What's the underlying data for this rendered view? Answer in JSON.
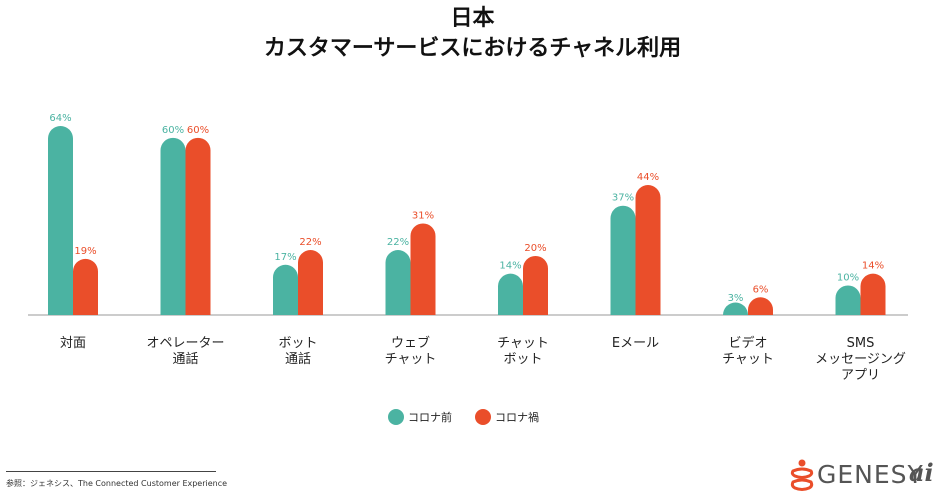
{
  "chart_data": {
    "type": "bar",
    "title": "日本",
    "subtitle": "カスタマーサービスにおけるチャネル利用",
    "categories": [
      [
        "対面"
      ],
      [
        "オペレーター",
        "通話"
      ],
      [
        "ボット",
        "通話"
      ],
      [
        "ウェブ",
        "チャット"
      ],
      [
        "チャット",
        "ボット"
      ],
      [
        "Eメール"
      ],
      [
        "ビデオ",
        "チャット"
      ],
      [
        "SMS",
        "メッセージング",
        "アプリ"
      ]
    ],
    "series": [
      {
        "name": "コロナ前",
        "color": "#4BB3A2",
        "values": [
          64,
          60,
          17,
          22,
          14,
          37,
          3,
          10
        ],
        "labels": [
          "64%",
          "60%",
          "17%",
          "22%",
          "14%",
          "37%",
          "3%",
          "10%"
        ]
      },
      {
        "name": "コロナ禍",
        "color": "#EA4E2A",
        "values": [
          19,
          60,
          22,
          31,
          20,
          44,
          6,
          14
        ],
        "labels": [
          "19%",
          "60%",
          "22%",
          "31%",
          "20%",
          "44%",
          "6%",
          "14%"
        ]
      }
    ],
    "ylim": [
      0,
      64
    ],
    "grid": false,
    "legend_position": "bottom-center"
  },
  "footer": {
    "source": "参照：ジェネシス、The Connected Customer Experience",
    "logo_text": "GENESY",
    "logo_ai": "ai"
  }
}
